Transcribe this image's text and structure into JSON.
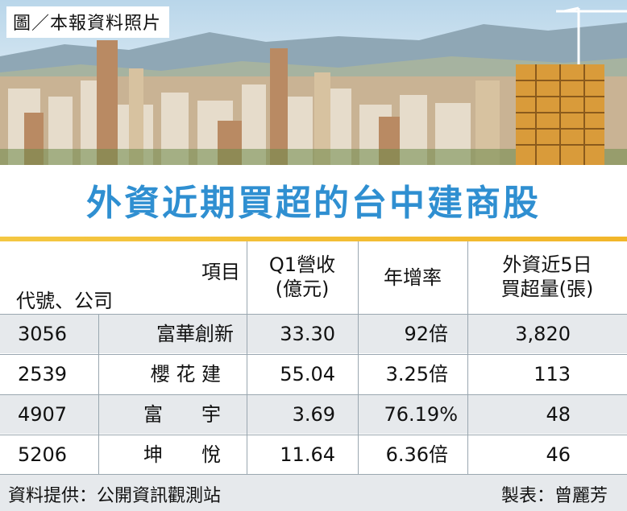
{
  "photo": {
    "credit": "圖／本報資料照片"
  },
  "title": "外資近期買超的台中建商股",
  "table": {
    "header": {
      "item_label": "項目",
      "code_company_label": "代號、公司",
      "q1_revenue_line1": "Q1營收",
      "q1_revenue_line2": "(億元)",
      "yoy": "年增率",
      "foreign_line1": "外資近5日",
      "foreign_line2": "買超量(張)"
    },
    "rows": [
      {
        "code": "3056",
        "company": "富華創新",
        "revenue": "33.30",
        "yoy": "92倍",
        "net_buy": "3,820"
      },
      {
        "code": "2539",
        "company": "櫻 花 建",
        "revenue": "55.04",
        "yoy": "3.25倍",
        "net_buy": "113"
      },
      {
        "code": "4907",
        "company": "富　　宇",
        "revenue": "3.69",
        "yoy": "76.19%",
        "net_buy": "48"
      },
      {
        "code": "5206",
        "company": "坤　　悅",
        "revenue": "11.64",
        "yoy": "6.36倍",
        "net_buy": "46"
      }
    ]
  },
  "footer": {
    "source": "資料提供：公開資訊觀測站",
    "maker": "製表：曾麗芳"
  }
}
